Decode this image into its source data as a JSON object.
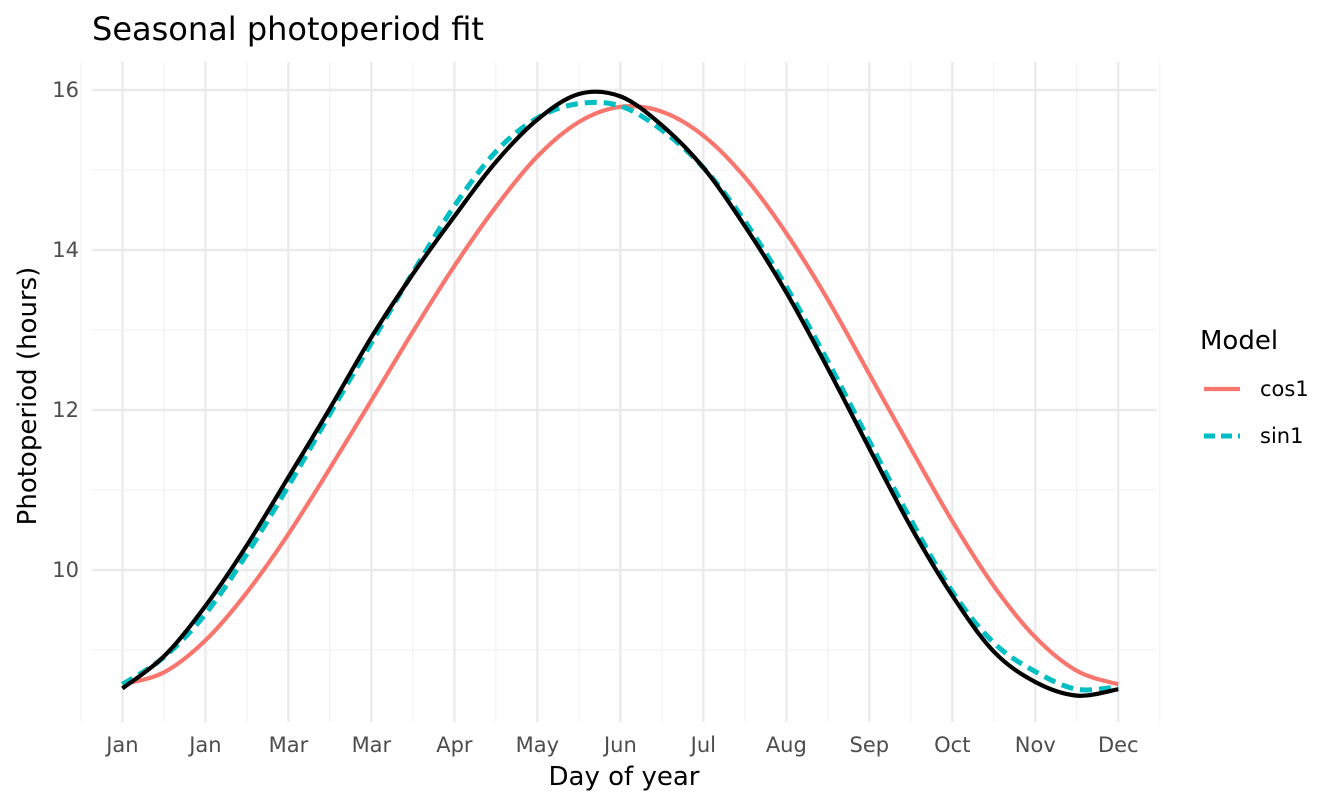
{
  "chart_data": {
    "type": "line",
    "title": "Seasonal photoperiod fit",
    "xlabel": "Day of year",
    "ylabel": "Photoperiod (hours)",
    "xlim": [
      -10,
      375
    ],
    "ylim": [
      8.1,
      16.35
    ],
    "x_ticks": [
      {
        "day": 1,
        "label": "Jan"
      },
      {
        "day": 31,
        "label": "Jan"
      },
      {
        "day": 61,
        "label": "Mar"
      },
      {
        "day": 91,
        "label": "Mar"
      },
      {
        "day": 121,
        "label": "Apr"
      },
      {
        "day": 151,
        "label": "May"
      },
      {
        "day": 181,
        "label": "Jun"
      },
      {
        "day": 211,
        "label": "Jul"
      },
      {
        "day": 241,
        "label": "Aug"
      },
      {
        "day": 271,
        "label": "Sep"
      },
      {
        "day": 301,
        "label": "Oct"
      },
      {
        "day": 331,
        "label": "Nov"
      },
      {
        "day": 361,
        "label": "Dec"
      }
    ],
    "y_ticks": [
      10,
      12,
      14,
      16
    ],
    "grid": true,
    "legend": {
      "title": "Model",
      "position": "right"
    },
    "series": [
      {
        "name": "cos1",
        "color": "#F8766D",
        "dash": "solid",
        "x": [
          1,
          16,
          31,
          46,
          61,
          76,
          91,
          106,
          121,
          136,
          151,
          166,
          181,
          196,
          211,
          226,
          241,
          256,
          271,
          286,
          301,
          316,
          331,
          346,
          361
        ],
        "y": [
          8.57,
          8.72,
          9.12,
          9.72,
          10.45,
          11.27,
          12.12,
          12.98,
          13.8,
          14.54,
          15.17,
          15.6,
          15.79,
          15.73,
          15.43,
          14.91,
          14.21,
          13.38,
          12.45,
          11.52,
          10.61,
          9.8,
          9.16,
          8.74,
          8.57
        ]
      },
      {
        "name": "sin1",
        "color": "#00BFC4",
        "dash": "dashed",
        "x": [
          1,
          16,
          31,
          46,
          61,
          76,
          91,
          106,
          121,
          136,
          151,
          166,
          181,
          196,
          211,
          226,
          241,
          256,
          271,
          286,
          301,
          316,
          331,
          346,
          361
        ],
        "y": [
          8.57,
          8.91,
          9.45,
          10.2,
          11.05,
          11.95,
          12.84,
          13.72,
          14.55,
          15.23,
          15.65,
          15.83,
          15.8,
          15.5,
          15.03,
          14.36,
          13.54,
          12.61,
          11.61,
          10.63,
          9.73,
          9.09,
          8.73,
          8.51,
          8.54
        ]
      },
      {
        "name": "",
        "color": "#000000",
        "dash": "solid",
        "x": [
          1,
          16,
          31,
          46,
          61,
          76,
          91,
          106,
          121,
          136,
          151,
          166,
          181,
          196,
          211,
          226,
          241,
          256,
          271,
          286,
          301,
          316,
          331,
          346,
          361
        ],
        "y": [
          8.52,
          8.92,
          9.55,
          10.31,
          11.16,
          12.02,
          12.91,
          13.7,
          14.42,
          15.1,
          15.63,
          15.95,
          15.92,
          15.56,
          15.03,
          14.3,
          13.47,
          12.52,
          11.52,
          10.54,
          9.68,
          8.98,
          8.6,
          8.43,
          8.51
        ]
      }
    ]
  }
}
